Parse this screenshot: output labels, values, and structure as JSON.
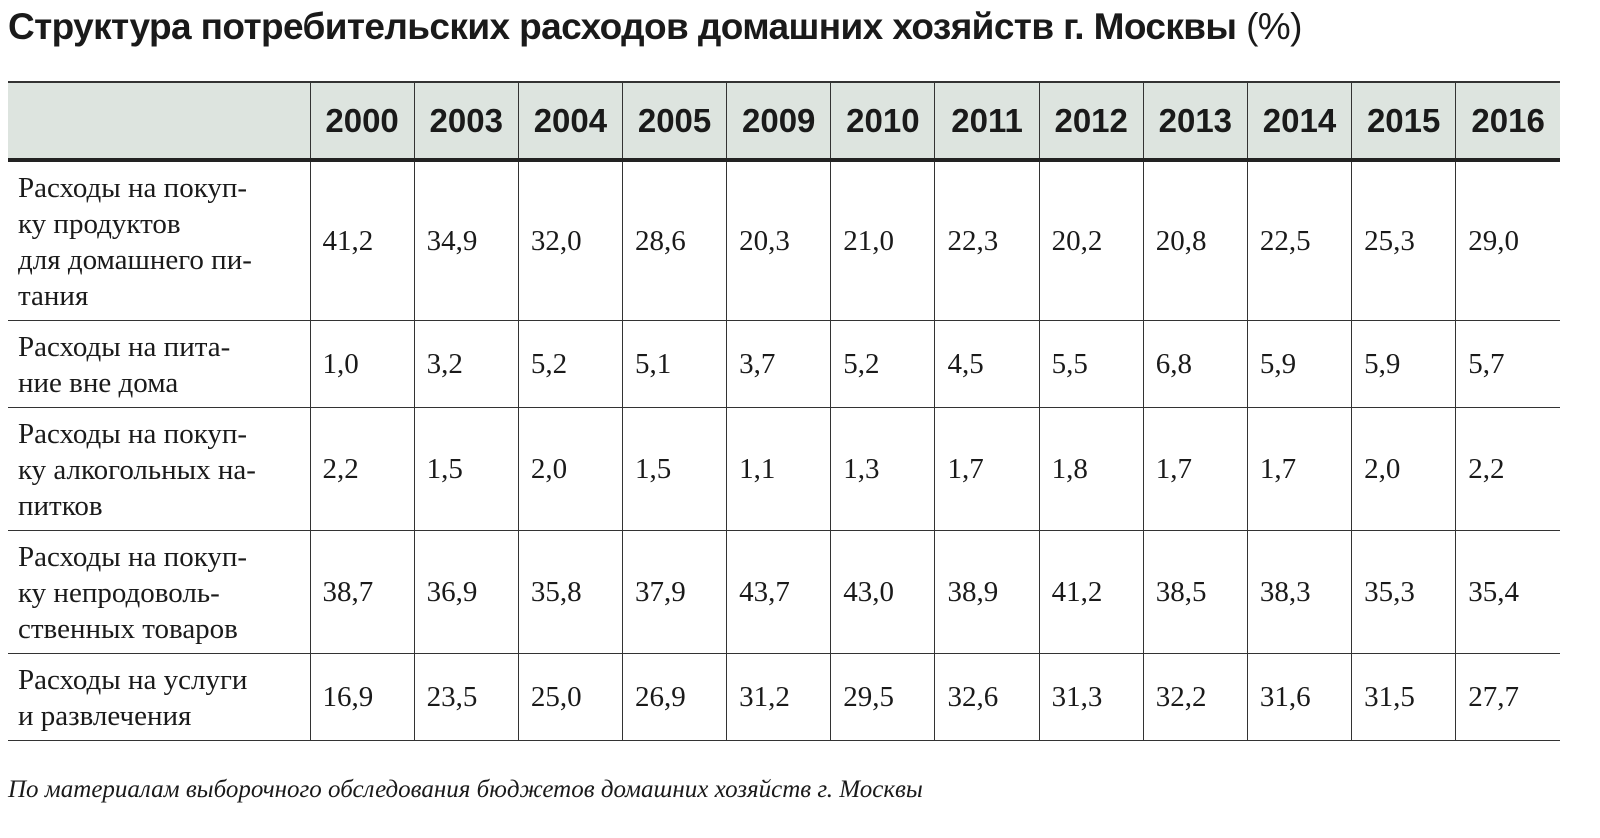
{
  "title": "Структура потребительских расходов домашних хозяйств г. Москвы",
  "unit": "(%)",
  "table": {
    "columns": [
      "2000",
      "2003",
      "2004",
      "2005",
      "2009",
      "2010",
      "2011",
      "2012",
      "2013",
      "2014",
      "2015",
      "2016"
    ],
    "rows": [
      {
        "label": [
          "Расходы на покуп-",
          "ку продуктов",
          "для домашнего пи-",
          "тания"
        ],
        "values": [
          "41,2",
          "34,9",
          "32,0",
          "28,6",
          "20,3",
          "21,0",
          "22,3",
          "20,2",
          "20,8",
          "22,5",
          "25,3",
          "29,0"
        ]
      },
      {
        "label": [
          "Расходы на пита-",
          "ние вне дома"
        ],
        "values": [
          "1,0",
          "3,2",
          "5,2",
          "5,1",
          "3,7",
          "5,2",
          "4,5",
          "5,5",
          "6,8",
          "5,9",
          "5,9",
          "5,7"
        ]
      },
      {
        "label": [
          "Расходы на покуп-",
          "ку алкогольных на-",
          "питков"
        ],
        "values": [
          "2,2",
          "1,5",
          "2,0",
          "1,5",
          "1,1",
          "1,3",
          "1,7",
          "1,8",
          "1,7",
          "1,7",
          "2,0",
          "2,2"
        ]
      },
      {
        "label": [
          "Расходы на покуп-",
          "ку непродоволь-",
          "ственных товаров"
        ],
        "values": [
          "38,7",
          "36,9",
          "35,8",
          "37,9",
          "43,7",
          "43,0",
          "38,9",
          "41,2",
          "38,5",
          "38,3",
          "35,3",
          "35,4"
        ]
      },
      {
        "label": [
          "Расходы на услуги",
          "и развлечения"
        ],
        "values": [
          "16,9",
          "23,5",
          "25,0",
          "26,9",
          "31,2",
          "29,5",
          "32,6",
          "31,3",
          "32,2",
          "31,6",
          "31,5",
          "27,7"
        ]
      }
    ]
  },
  "footnote": "По материалам выборочного обследования бюджетов домашних хозяйств г. Москвы"
}
